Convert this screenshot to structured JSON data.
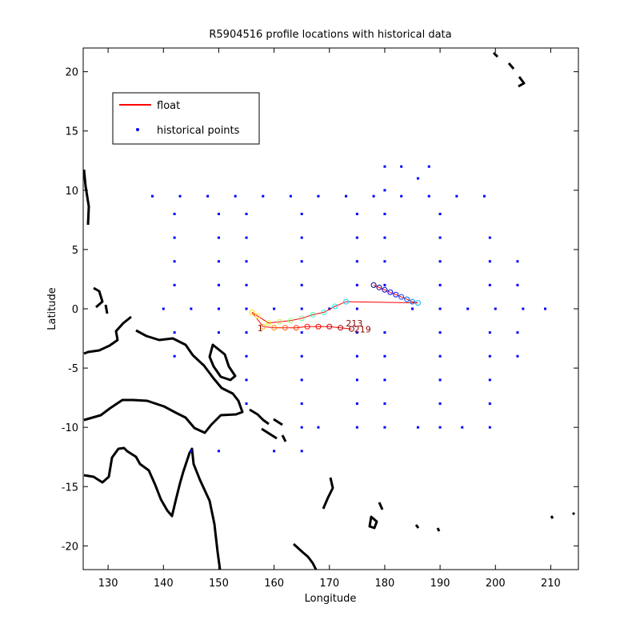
{
  "chart_data": {
    "type": "scatter",
    "title": "R5904516 profile locations with historical data",
    "xlabel": "Longitude",
    "ylabel": "Latitude",
    "xlim": [
      125.5,
      215
    ],
    "ylim": [
      -22,
      22
    ],
    "xticks": [
      130,
      140,
      150,
      160,
      170,
      180,
      190,
      200,
      210
    ],
    "yticks": [
      -20,
      -15,
      -10,
      -5,
      0,
      5,
      10,
      15,
      20
    ],
    "xtick_labels": [
      "130",
      "140",
      "150",
      "160",
      "170",
      "180",
      "190",
      "200",
      "210"
    ],
    "ytick_labels": [
      "-20",
      "-15",
      "-10",
      "-5",
      "0",
      "5",
      "10",
      "15",
      "20"
    ],
    "grid": false,
    "legend_position": "top-left",
    "legend": [
      {
        "label": "float",
        "color": "#ff0000",
        "marker": "line"
      },
      {
        "label": "historical points",
        "color": "#0000ff",
        "marker": "dot"
      }
    ],
    "colors": {
      "historical": "#0000ff",
      "coastline": "#000000",
      "float_line": "#ff0000"
    },
    "series": [
      {
        "name": "historical points",
        "color": "#0000ff",
        "points": [
          [
            138,
            9.5
          ],
          [
            143,
            9.5
          ],
          [
            148,
            9.5
          ],
          [
            153,
            9.5
          ],
          [
            158,
            9.5
          ],
          [
            163,
            9.5
          ],
          [
            168,
            9.5
          ],
          [
            173,
            9.5
          ],
          [
            178,
            9.5
          ],
          [
            183,
            9.5
          ],
          [
            188,
            9.5
          ],
          [
            193,
            9.5
          ],
          [
            198,
            9.5
          ],
          [
            140,
            0
          ],
          [
            145,
            0
          ],
          [
            150,
            0
          ],
          [
            155,
            0
          ],
          [
            160,
            0
          ],
          [
            165,
            0
          ],
          [
            170,
            0
          ],
          [
            175,
            0
          ],
          [
            185,
            0
          ],
          [
            190,
            0
          ],
          [
            195,
            0
          ],
          [
            200,
            0
          ],
          [
            205,
            0
          ],
          [
            209,
            0
          ],
          [
            142,
            8
          ],
          [
            142,
            6
          ],
          [
            142,
            4
          ],
          [
            142,
            2
          ],
          [
            142,
            -2
          ],
          [
            142,
            -4
          ],
          [
            150,
            8
          ],
          [
            150,
            6
          ],
          [
            150,
            4
          ],
          [
            150,
            2
          ],
          [
            150,
            -2
          ],
          [
            155,
            8
          ],
          [
            155,
            6
          ],
          [
            155,
            4
          ],
          [
            155,
            2
          ],
          [
            155,
            -2
          ],
          [
            155,
            -4
          ],
          [
            155,
            -6
          ],
          [
            155,
            -8
          ],
          [
            165,
            8
          ],
          [
            165,
            6
          ],
          [
            165,
            4
          ],
          [
            165,
            2
          ],
          [
            165,
            -2
          ],
          [
            165,
            -4
          ],
          [
            165,
            -6
          ],
          [
            165,
            -8
          ],
          [
            165,
            -10
          ],
          [
            165,
            -12
          ],
          [
            175,
            8
          ],
          [
            175,
            6
          ],
          [
            175,
            4
          ],
          [
            175,
            2
          ],
          [
            175,
            -2
          ],
          [
            175,
            -4
          ],
          [
            175,
            -6
          ],
          [
            175,
            -8
          ],
          [
            175,
            -10
          ],
          [
            180,
            12
          ],
          [
            180,
            10
          ],
          [
            180,
            8
          ],
          [
            180,
            6
          ],
          [
            180,
            4
          ],
          [
            180,
            2
          ],
          [
            180,
            -2
          ],
          [
            180,
            -4
          ],
          [
            180,
            -6
          ],
          [
            180,
            -8
          ],
          [
            180,
            -10
          ],
          [
            190,
            8
          ],
          [
            190,
            6
          ],
          [
            190,
            4
          ],
          [
            190,
            2
          ],
          [
            190,
            -2
          ],
          [
            190,
            -4
          ],
          [
            190,
            -6
          ],
          [
            190,
            -8
          ],
          [
            190,
            -10
          ],
          [
            199,
            6
          ],
          [
            199,
            4
          ],
          [
            199,
            2
          ],
          [
            199,
            -2
          ],
          [
            199,
            -4
          ],
          [
            199,
            -6
          ],
          [
            199,
            -8
          ],
          [
            199,
            -10
          ],
          [
            204,
            4
          ],
          [
            204,
            2
          ],
          [
            204,
            -2
          ],
          [
            204,
            -4
          ],
          [
            183,
            12
          ],
          [
            186,
            11
          ],
          [
            188,
            12
          ],
          [
            160,
            -12
          ],
          [
            150,
            -12
          ],
          [
            145,
            -12
          ],
          [
            168,
            -10
          ],
          [
            186,
            -10
          ],
          [
            194,
            -10
          ]
        ]
      },
      {
        "name": "float",
        "color": "#ff0000",
        "points": [
          [
            178,
            2
          ],
          [
            179,
            1.8
          ],
          [
            180,
            1.6
          ],
          [
            181,
            1.4
          ],
          [
            182,
            1.2
          ],
          [
            183,
            1
          ],
          [
            184,
            0.8
          ],
          [
            185,
            0.6
          ],
          [
            186,
            0.5
          ],
          [
            173,
            0.6
          ],
          [
            171,
            0.2
          ],
          [
            169,
            -0.3
          ],
          [
            167,
            -0.5
          ],
          [
            165,
            -0.8
          ],
          [
            163,
            -1
          ],
          [
            161,
            -1.1
          ],
          [
            159,
            -1.2
          ],
          [
            157,
            -0.6
          ],
          [
            156,
            -0.3
          ],
          [
            158,
            -1.5
          ],
          [
            160,
            -1.6
          ],
          [
            162,
            -1.6
          ],
          [
            164,
            -1.6
          ],
          [
            166,
            -1.5
          ],
          [
            168,
            -1.5
          ],
          [
            170,
            -1.5
          ],
          [
            172,
            -1.6
          ],
          [
            174,
            -1.7
          ]
        ]
      }
    ]
  },
  "float_labels": [
    {
      "text": "1",
      "x": 157.5,
      "y": -1.9
    },
    {
      "text": "213",
      "x": 174.5,
      "y": -1.5
    },
    {
      "text": "219",
      "x": 176.0,
      "y": -2.0
    }
  ]
}
